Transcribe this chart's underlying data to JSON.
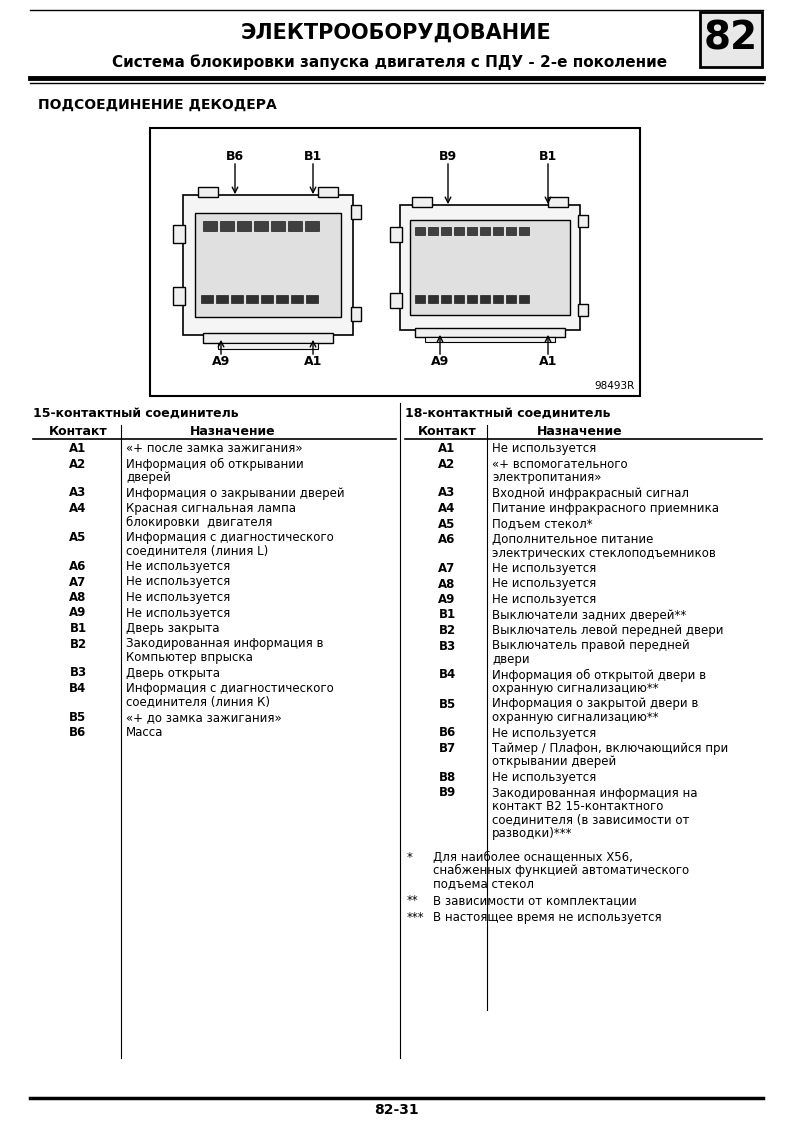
{
  "title_main": "ЭЛЕКТРООБОРУДОВАНИЕ",
  "title_sub": "Система блокировки запуска двигателя с ПДУ - 2-е поколение",
  "page_num": "82",
  "section_title": "ПОДСОЕДИНЕНИЕ ДЕКОДЕРА",
  "diagram_code": "98493R",
  "table1_header": "15-контактный соединитель",
  "table1_col1": "Контакт",
  "table1_col2": "Назначение",
  "table1_rows": [
    [
      "A1",
      "«+ после замка зажигания»"
    ],
    [
      "A2",
      "Информация об открывании\nдверей"
    ],
    [
      "A3",
      "Информация о закрывании дверей"
    ],
    [
      "A4",
      "Красная сигнальная лампа\nблокировки  двигателя"
    ],
    [
      "A5",
      "Информация с диагностического\nсоединителя (линия L)"
    ],
    [
      "A6",
      "Не используется"
    ],
    [
      "A7",
      "Не используется"
    ],
    [
      "A8",
      "Не используется"
    ],
    [
      "A9",
      "Не используется"
    ],
    [
      "B1",
      "Дверь закрыта"
    ],
    [
      "B2",
      "Закодированная информация в\nКомпьютер впрыска"
    ],
    [
      "B3",
      "Дверь открыта"
    ],
    [
      "B4",
      "Информация с диагностического\nсоединителя (линия К)"
    ],
    [
      "B5",
      "«+ до замка зажигания»"
    ],
    [
      "B6",
      "Масса"
    ]
  ],
  "table2_header": "18-контактный соединитель",
  "table2_col1": "Контакт",
  "table2_col2": "Назначение",
  "table2_rows": [
    [
      "A1",
      "Не используется"
    ],
    [
      "A2",
      "«+ вспомогательного\nэлектропитания»"
    ],
    [
      "A3",
      "Входной инфракрасный сигнал"
    ],
    [
      "A4",
      "Питание инфракрасного приемника"
    ],
    [
      "A5",
      "Подъем стекол*"
    ],
    [
      "A6",
      "Дополнительное питание\nэлектрических стеклоподъемников"
    ],
    [
      "A7",
      "Не используется"
    ],
    [
      "A8",
      "Не используется"
    ],
    [
      "A9",
      "Не используется"
    ],
    [
      "B1",
      "Выключатели задних дверей**"
    ],
    [
      "B2",
      "Выключатель левой передней двери"
    ],
    [
      "B3",
      "Выключатель правой передней\nдвери"
    ],
    [
      "B4",
      "Информация об открытой двери в\nохранную сигнализацию**"
    ],
    [
      "B5",
      "Информация о закрытой двери в\nохранную сигнализацию**"
    ],
    [
      "B6",
      "Не используется"
    ],
    [
      "B7",
      "Таймер / Плафон, включающийся при\nоткрывании дверей"
    ],
    [
      "B8",
      "Не используется"
    ],
    [
      "B9",
      "Закодированная информация на\nконтакт В2 15-контактного\nсоединителя (в зависимости от\nразводки)***"
    ]
  ],
  "footnotes": [
    [
      "*",
      "Для наиболее оснащенных Х56,\nснабженных функцией автоматического\nподъема стекол"
    ],
    [
      "**",
      "В зависимости от комплектации"
    ],
    [
      "***",
      "В настоящее время не используется"
    ]
  ],
  "page_footer": "82-31",
  "bg_color": "#ffffff",
  "text_color": "#000000"
}
